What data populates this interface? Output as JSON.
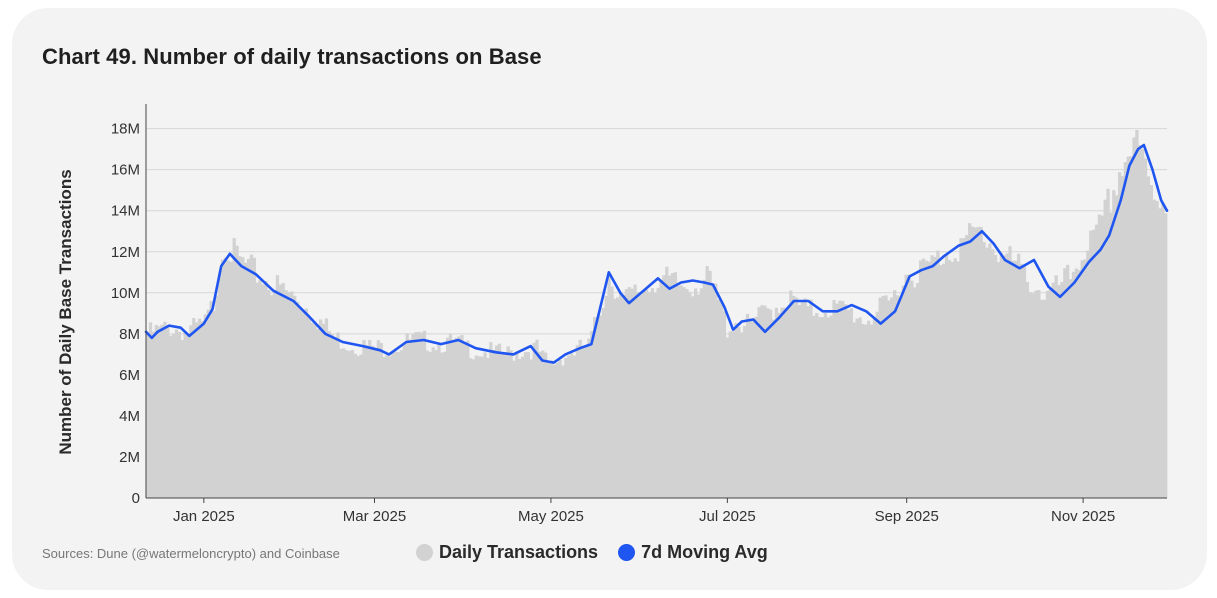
{
  "title": "Chart 49. Number of daily transactions on Base",
  "source": "Sources: Dune (@watermeloncrypto) and Coinbase",
  "colors": {
    "bars": "#d2d2d2",
    "line": "#1f55f0",
    "grid": "#d6d6d6",
    "axis": "#444444"
  },
  "legend": {
    "bars": {
      "label": "Daily Transactions",
      "color": "#d2d2d2"
    },
    "line": {
      "label": "7d Moving Avg",
      "color": "#1f55f0"
    }
  },
  "chart_data": {
    "type": "bar",
    "ylabel": "Number of Daily Base Transactions",
    "xlabel": "",
    "ylim": [
      0,
      19200000
    ],
    "yticks": [
      {
        "value": 0,
        "label": "0"
      },
      {
        "value": 2000000,
        "label": "2M"
      },
      {
        "value": 4000000,
        "label": "4M"
      },
      {
        "value": 6000000,
        "label": "6M"
      },
      {
        "value": 8000000,
        "label": "8M"
      },
      {
        "value": 10000000,
        "label": "10M"
      },
      {
        "value": 12000000,
        "label": "12M"
      },
      {
        "value": 14000000,
        "label": "14M"
      },
      {
        "value": 16000000,
        "label": "16M"
      },
      {
        "value": 18000000,
        "label": "18M"
      }
    ],
    "xrange": [
      "2024-12-12",
      "2025-11-30"
    ],
    "xticks": [
      {
        "date": "2025-01-01",
        "label": "Jan 2025"
      },
      {
        "date": "2025-03-01",
        "label": "Mar 2025"
      },
      {
        "date": "2025-05-01",
        "label": "May 2025"
      },
      {
        "date": "2025-07-01",
        "label": "Jul 2025"
      },
      {
        "date": "2025-09-01",
        "label": "Sep 2025"
      },
      {
        "date": "2025-11-01",
        "label": "Nov 2025"
      }
    ],
    "grid": true,
    "legend_position": "bottom",
    "series": [
      {
        "name": "Daily Transactions",
        "type": "bar",
        "points": [
          [
            "2024-12-12",
            8000000
          ],
          [
            "2024-12-20",
            8300000
          ],
          [
            "2024-12-26",
            8100000
          ],
          [
            "2025-01-01",
            8500000
          ],
          [
            "2025-01-04",
            9500000
          ],
          [
            "2025-01-06",
            11500000
          ],
          [
            "2025-01-08",
            12600000
          ],
          [
            "2025-01-10",
            12000000
          ],
          [
            "2025-01-14",
            11400000
          ],
          [
            "2025-01-20",
            10800000
          ],
          [
            "2025-01-27",
            10200000
          ],
          [
            "2025-02-03",
            9600000
          ],
          [
            "2025-02-10",
            8600000
          ],
          [
            "2025-02-15",
            7800000
          ],
          [
            "2025-02-20",
            7500000
          ],
          [
            "2025-03-01",
            7300000
          ],
          [
            "2025-03-08",
            7400000
          ],
          [
            "2025-03-14",
            7700000
          ],
          [
            "2025-03-22",
            7600000
          ],
          [
            "2025-03-30",
            7500000
          ],
          [
            "2025-04-05",
            7200000
          ],
          [
            "2025-04-15",
            7000000
          ],
          [
            "2025-04-22",
            7200000
          ],
          [
            "2025-04-26",
            7300000
          ],
          [
            "2025-04-28",
            6800000
          ],
          [
            "2025-05-01",
            6500000
          ],
          [
            "2025-05-05",
            6900000
          ],
          [
            "2025-05-10",
            7200000
          ],
          [
            "2025-05-14",
            7400000
          ],
          [
            "2025-05-18",
            9200000
          ],
          [
            "2025-05-21",
            10900000
          ],
          [
            "2025-05-26",
            9600000
          ],
          [
            "2025-06-01",
            10100000
          ],
          [
            "2025-06-07",
            10700000
          ],
          [
            "2025-06-15",
            10300000
          ],
          [
            "2025-06-20",
            10500000
          ],
          [
            "2025-06-25",
            10600000
          ],
          [
            "2025-06-29",
            9200000
          ],
          [
            "2025-07-01",
            8300000
          ],
          [
            "2025-07-04",
            8600000
          ],
          [
            "2025-07-08",
            8400000
          ],
          [
            "2025-07-15",
            9100000
          ],
          [
            "2025-07-22",
            9700000
          ],
          [
            "2025-07-29",
            9100000
          ],
          [
            "2025-08-05",
            9300000
          ],
          [
            "2025-08-12",
            9100000
          ],
          [
            "2025-08-18",
            8700000
          ],
          [
            "2025-08-26",
            9400000
          ],
          [
            "2025-09-01",
            10900000
          ],
          [
            "2025-09-06",
            11100000
          ],
          [
            "2025-09-10",
            11400000
          ],
          [
            "2025-09-15",
            12000000
          ],
          [
            "2025-09-22",
            12500000
          ],
          [
            "2025-09-26",
            13000000
          ],
          [
            "2025-09-30",
            12500000
          ],
          [
            "2025-10-05",
            11800000
          ],
          [
            "2025-10-10",
            11200000
          ],
          [
            "2025-10-16",
            10300000
          ],
          [
            "2025-10-20",
            9800000
          ],
          [
            "2025-10-28",
            10800000
          ],
          [
            "2025-11-02",
            12200000
          ],
          [
            "2025-11-06",
            12600000
          ],
          [
            "2025-11-10",
            14200000
          ],
          [
            "2025-11-14",
            15900000
          ],
          [
            "2025-11-17",
            16800000
          ],
          [
            "2025-11-19",
            17200000
          ],
          [
            "2025-11-22",
            16400000
          ],
          [
            "2025-11-25",
            15000000
          ],
          [
            "2025-11-30",
            14500000
          ]
        ]
      },
      {
        "name": "7d Moving Avg",
        "type": "line",
        "points": [
          [
            "2024-12-12",
            8100000
          ],
          [
            "2024-12-14",
            7800000
          ],
          [
            "2024-12-16",
            8100000
          ],
          [
            "2024-12-20",
            8400000
          ],
          [
            "2024-12-24",
            8300000
          ],
          [
            "2024-12-27",
            7900000
          ],
          [
            "2025-01-01",
            8500000
          ],
          [
            "2025-01-04",
            9200000
          ],
          [
            "2025-01-07",
            11300000
          ],
          [
            "2025-01-10",
            11900000
          ],
          [
            "2025-01-14",
            11300000
          ],
          [
            "2025-01-19",
            10900000
          ],
          [
            "2025-01-25",
            10100000
          ],
          [
            "2025-02-01",
            9600000
          ],
          [
            "2025-02-06",
            8900000
          ],
          [
            "2025-02-12",
            8000000
          ],
          [
            "2025-02-18",
            7600000
          ],
          [
            "2025-02-25",
            7400000
          ],
          [
            "2025-03-03",
            7200000
          ],
          [
            "2025-03-06",
            7000000
          ],
          [
            "2025-03-12",
            7600000
          ],
          [
            "2025-03-18",
            7700000
          ],
          [
            "2025-03-24",
            7500000
          ],
          [
            "2025-03-30",
            7700000
          ],
          [
            "2025-04-05",
            7300000
          ],
          [
            "2025-04-12",
            7100000
          ],
          [
            "2025-04-18",
            7000000
          ],
          [
            "2025-04-24",
            7400000
          ],
          [
            "2025-04-28",
            6700000
          ],
          [
            "2025-05-02",
            6600000
          ],
          [
            "2025-05-06",
            7000000
          ],
          [
            "2025-05-11",
            7300000
          ],
          [
            "2025-05-15",
            7500000
          ],
          [
            "2025-05-21",
            11000000
          ],
          [
            "2025-05-25",
            10000000
          ],
          [
            "2025-05-28",
            9500000
          ],
          [
            "2025-06-02",
            10100000
          ],
          [
            "2025-06-07",
            10700000
          ],
          [
            "2025-06-11",
            10200000
          ],
          [
            "2025-06-15",
            10500000
          ],
          [
            "2025-06-19",
            10600000
          ],
          [
            "2025-06-23",
            10500000
          ],
          [
            "2025-06-26",
            10400000
          ],
          [
            "2025-06-30",
            9300000
          ],
          [
            "2025-07-03",
            8200000
          ],
          [
            "2025-07-06",
            8600000
          ],
          [
            "2025-07-10",
            8700000
          ],
          [
            "2025-07-14",
            8100000
          ],
          [
            "2025-07-19",
            8800000
          ],
          [
            "2025-07-24",
            9600000
          ],
          [
            "2025-07-29",
            9600000
          ],
          [
            "2025-08-03",
            9100000
          ],
          [
            "2025-08-08",
            9100000
          ],
          [
            "2025-08-13",
            9400000
          ],
          [
            "2025-08-18",
            9100000
          ],
          [
            "2025-08-23",
            8500000
          ],
          [
            "2025-08-28",
            9100000
          ],
          [
            "2025-09-02",
            10800000
          ],
          [
            "2025-09-06",
            11100000
          ],
          [
            "2025-09-10",
            11300000
          ],
          [
            "2025-09-14",
            11800000
          ],
          [
            "2025-09-19",
            12300000
          ],
          [
            "2025-09-23",
            12500000
          ],
          [
            "2025-09-27",
            13000000
          ],
          [
            "2025-10-01",
            12400000
          ],
          [
            "2025-10-05",
            11600000
          ],
          [
            "2025-10-10",
            11200000
          ],
          [
            "2025-10-15",
            11600000
          ],
          [
            "2025-10-20",
            10300000
          ],
          [
            "2025-10-24",
            9800000
          ],
          [
            "2025-10-29",
            10500000
          ],
          [
            "2025-11-03",
            11500000
          ],
          [
            "2025-11-07",
            12100000
          ],
          [
            "2025-11-10",
            12800000
          ],
          [
            "2025-11-14",
            14500000
          ],
          [
            "2025-11-17",
            16200000
          ],
          [
            "2025-11-20",
            17000000
          ],
          [
            "2025-11-22",
            17200000
          ],
          [
            "2025-11-25",
            16000000
          ],
          [
            "2025-11-28",
            14500000
          ],
          [
            "2025-11-30",
            14000000
          ]
        ]
      }
    ]
  }
}
